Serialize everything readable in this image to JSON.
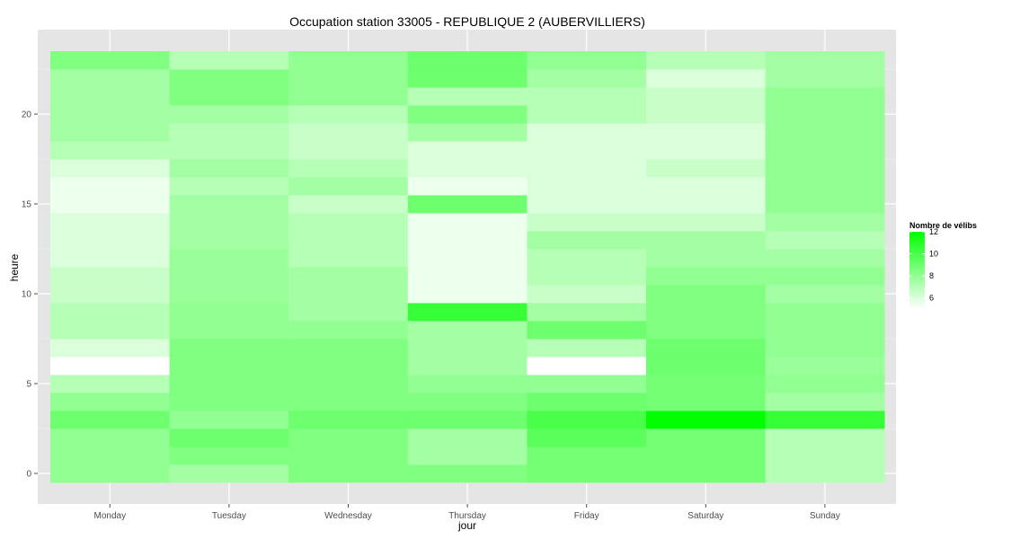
{
  "chart_data": {
    "type": "heatmap",
    "title": "Occupation station 33005 - REPUBLIQUE 2 (AUBERVILLIERS)",
    "xlabel": "jour",
    "ylabel": "heure",
    "categories": [
      "Monday",
      "Tuesday",
      "Wednesday",
      "Thursday",
      "Friday",
      "Saturday",
      "Sunday"
    ],
    "y": [
      0,
      1,
      2,
      3,
      4,
      5,
      6,
      7,
      8,
      9,
      10,
      11,
      12,
      13,
      14,
      15,
      16,
      17,
      18,
      19,
      20,
      21,
      22,
      23
    ],
    "ylim": [
      -0.5,
      23.5
    ],
    "y_ticks": [
      0,
      5,
      10,
      15,
      20
    ],
    "grid": true,
    "values": [
      [
        8.0,
        7.5,
        8.5,
        8.5,
        8.8,
        8.8,
        7.0
      ],
      [
        8.0,
        8.5,
        8.5,
        7.5,
        8.8,
        8.8,
        7.0
      ],
      [
        8.0,
        9.0,
        8.5,
        7.5,
        9.5,
        8.8,
        7.0
      ],
      [
        9.0,
        8.0,
        9.0,
        9.0,
        10.0,
        12.0,
        10.5
      ],
      [
        8.0,
        8.5,
        8.5,
        8.5,
        9.0,
        8.8,
        7.5
      ],
      [
        7.0,
        8.5,
        8.5,
        8.0,
        8.0,
        8.8,
        8.0
      ],
      [
        5.0,
        8.5,
        8.5,
        7.5,
        5.0,
        9.0,
        7.8
      ],
      [
        6.0,
        8.5,
        8.5,
        7.5,
        7.0,
        9.0,
        8.0
      ],
      [
        7.0,
        8.0,
        8.0,
        7.5,
        9.0,
        8.5,
        8.0
      ],
      [
        7.0,
        8.0,
        7.5,
        10.5,
        7.5,
        8.5,
        8.0
      ],
      [
        6.5,
        7.8,
        7.5,
        5.5,
        6.5,
        8.5,
        7.5
      ],
      [
        6.5,
        7.8,
        7.5,
        5.5,
        7.0,
        8.0,
        8.0
      ],
      [
        6.0,
        7.8,
        7.0,
        5.5,
        7.0,
        7.5,
        7.5
      ],
      [
        6.0,
        7.5,
        7.0,
        5.5,
        7.5,
        7.5,
        7.0
      ],
      [
        6.0,
        7.5,
        7.0,
        5.5,
        6.5,
        6.5,
        7.5
      ],
      [
        5.5,
        7.5,
        6.5,
        9.0,
        6.0,
        6.0,
        8.0
      ],
      [
        5.5,
        7.0,
        7.5,
        5.5,
        6.0,
        6.0,
        8.0
      ],
      [
        6.0,
        7.5,
        7.0,
        6.0,
        6.0,
        6.5,
        8.0
      ],
      [
        7.0,
        7.0,
        6.5,
        6.0,
        6.0,
        6.0,
        8.0
      ],
      [
        7.5,
        7.0,
        6.5,
        7.5,
        6.0,
        6.0,
        8.0
      ],
      [
        7.5,
        7.5,
        7.0,
        8.5,
        7.0,
        6.5,
        8.0
      ],
      [
        7.5,
        8.5,
        8.0,
        7.0,
        7.0,
        6.5,
        8.0
      ],
      [
        7.5,
        8.5,
        8.0,
        9.0,
        7.5,
        6.0,
        7.5
      ],
      [
        8.5,
        7.0,
        8.0,
        9.0,
        8.0,
        7.0,
        7.5
      ]
    ],
    "legend": {
      "title": "Nombre de vélibs",
      "placement": "right",
      "breaks": [
        6,
        8,
        10,
        12
      ],
      "min": 5,
      "max": 12,
      "low_color": "#ffffff",
      "high_color": "#00ff00"
    },
    "panel_color": "#e5e5e5"
  }
}
